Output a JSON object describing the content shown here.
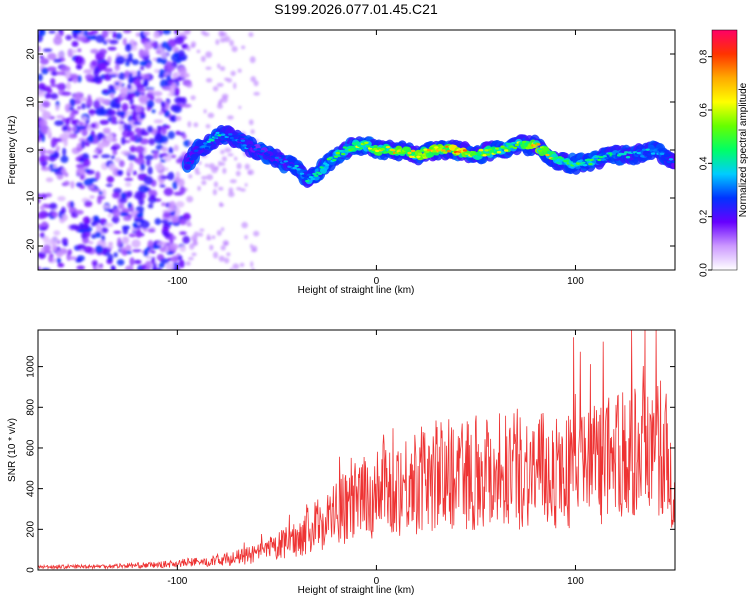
{
  "title": "S199.2026.077.01.45.C21",
  "chart_data": [
    {
      "type": "heatmap",
      "xlabel": "Height of straight line (km)",
      "ylabel": "Frequency (Hz)",
      "xlim": [
        -170,
        150
      ],
      "ylim": [
        -25,
        25
      ],
      "xticks": [
        -100,
        0,
        100
      ],
      "yticks": [
        -20,
        -10,
        0,
        10,
        20
      ],
      "colorbar": {
        "label": "Normalized spectral amplitude",
        "range": [
          0.0,
          0.9
        ],
        "ticks": [
          0.0,
          0.2,
          0.4,
          0.6,
          0.8
        ],
        "colors": [
          "#ffffff",
          "#cc99ff",
          "#6600ff",
          "#0033ff",
          "#00ccff",
          "#00ff66",
          "#66ff00",
          "#ffff00",
          "#ffaa00",
          "#ff3300",
          "#ff0066"
        ]
      },
      "ridge": {
        "x": [
          -95,
          -90,
          -85,
          -80,
          -75,
          -70,
          -65,
          -60,
          -55,
          -50,
          -45,
          -40,
          -35,
          -30,
          -25,
          -20,
          -15,
          -10,
          -5,
          0,
          10,
          20,
          30,
          40,
          50,
          60,
          70,
          80,
          90,
          100,
          110,
          120,
          130,
          140,
          150
        ],
        "freq": [
          -3,
          0,
          1,
          3,
          3,
          2,
          1,
          0,
          -1,
          -2,
          -3,
          -4,
          -6,
          -5,
          -3,
          -1,
          0,
          1,
          1,
          0,
          0,
          -1,
          0,
          0,
          -1,
          0,
          1,
          1,
          -2,
          -3,
          -2,
          -1,
          -1,
          0,
          -3
        ],
        "amplitude": [
          0.3,
          0.35,
          0.4,
          0.45,
          0.4,
          0.35,
          0.35,
          0.3,
          0.3,
          0.35,
          0.35,
          0.4,
          0.45,
          0.45,
          0.5,
          0.55,
          0.6,
          0.65,
          0.6,
          0.7,
          0.75,
          0.75,
          0.8,
          0.9,
          0.7,
          0.65,
          0.6,
          0.8,
          0.65,
          0.55,
          0.5,
          0.45,
          0.4,
          0.4,
          0.35
        ]
      }
    },
    {
      "type": "line",
      "xlabel": "Height of straight line (km)",
      "ylabel": "SNR (10 * v/v)",
      "xlim": [
        -170,
        150
      ],
      "ylim": [
        0,
        1180
      ],
      "xticks": [
        -100,
        0,
        100
      ],
      "yticks": [
        0,
        200,
        400,
        600,
        800,
        1000
      ],
      "series": [
        {
          "name": "SNR",
          "color": "#ee3333",
          "envelope_x": [
            -170,
            -140,
            -110,
            -90,
            -80,
            -70,
            -60,
            -50,
            -40,
            -30,
            -20,
            -10,
            0,
            10,
            20,
            30,
            40,
            50,
            60,
            70,
            80,
            90,
            100,
            110,
            120,
            130,
            140,
            145,
            150
          ],
          "envelope_y": [
            15,
            18,
            25,
            40,
            55,
            70,
            90,
            130,
            180,
            250,
            320,
            380,
            430,
            470,
            500,
            530,
            550,
            560,
            570,
            570,
            560,
            550,
            560,
            580,
            620,
            650,
            680,
            700,
            300
          ]
        }
      ]
    }
  ]
}
